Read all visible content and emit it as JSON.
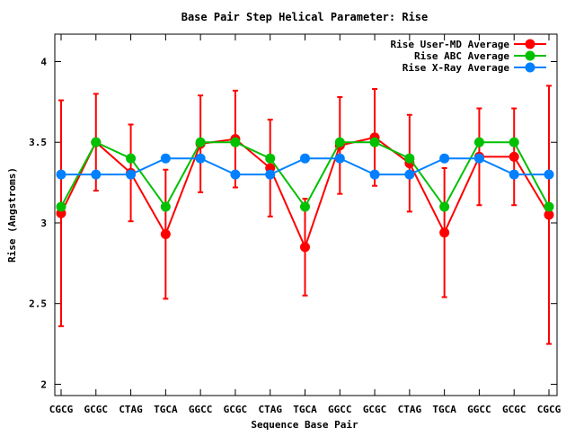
{
  "chart_data": {
    "type": "line",
    "title": "Base Pair Step Helical Parameter: Rise",
    "xlabel": "Sequence Base Pair",
    "ylabel": "Rise (Angstroms)",
    "categories": [
      "CGCG",
      "GCGC",
      "CTAG",
      "TGCA",
      "GGCC",
      "GCGC",
      "CTAG",
      "TGCA",
      "GGCC",
      "GCGC",
      "CTAG",
      "TGCA",
      "GGCC",
      "GCGC",
      "CGCG"
    ],
    "ylim": [
      1.93,
      4.17
    ],
    "yticks": [
      2,
      2.5,
      3,
      3.5,
      4
    ],
    "ytick_labels": [
      "2",
      "2.5",
      "3",
      "3.5",
      "4"
    ],
    "grid": false,
    "legend_position": "top-right",
    "series": [
      {
        "name": "Rise User-MD Average",
        "color": "#ff0000",
        "values": [
          3.06,
          3.5,
          3.31,
          2.93,
          3.49,
          3.52,
          3.34,
          2.85,
          3.48,
          3.53,
          3.37,
          2.94,
          3.41,
          3.41,
          3.05
        ],
        "error_low": [
          2.36,
          3.2,
          3.01,
          2.53,
          3.19,
          3.22,
          3.04,
          2.55,
          3.18,
          3.23,
          3.07,
          2.54,
          3.11,
          3.11,
          2.25
        ],
        "error_high": [
          3.76,
          3.8,
          3.61,
          3.33,
          3.79,
          3.82,
          3.64,
          3.15,
          3.78,
          3.83,
          3.67,
          3.34,
          3.71,
          3.71,
          3.85
        ]
      },
      {
        "name": "Rise ABC Average",
        "color": "#00c000",
        "values": [
          3.1,
          3.5,
          3.4,
          3.1,
          3.5,
          3.5,
          3.4,
          3.1,
          3.5,
          3.5,
          3.4,
          3.1,
          3.5,
          3.5,
          3.1
        ]
      },
      {
        "name": "Rise X-Ray Average",
        "color": "#0080ff",
        "values": [
          3.3,
          3.3,
          3.3,
          3.4,
          3.4,
          3.3,
          3.3,
          3.4,
          3.4,
          3.3,
          3.3,
          3.4,
          3.4,
          3.3,
          3.3
        ]
      }
    ]
  }
}
